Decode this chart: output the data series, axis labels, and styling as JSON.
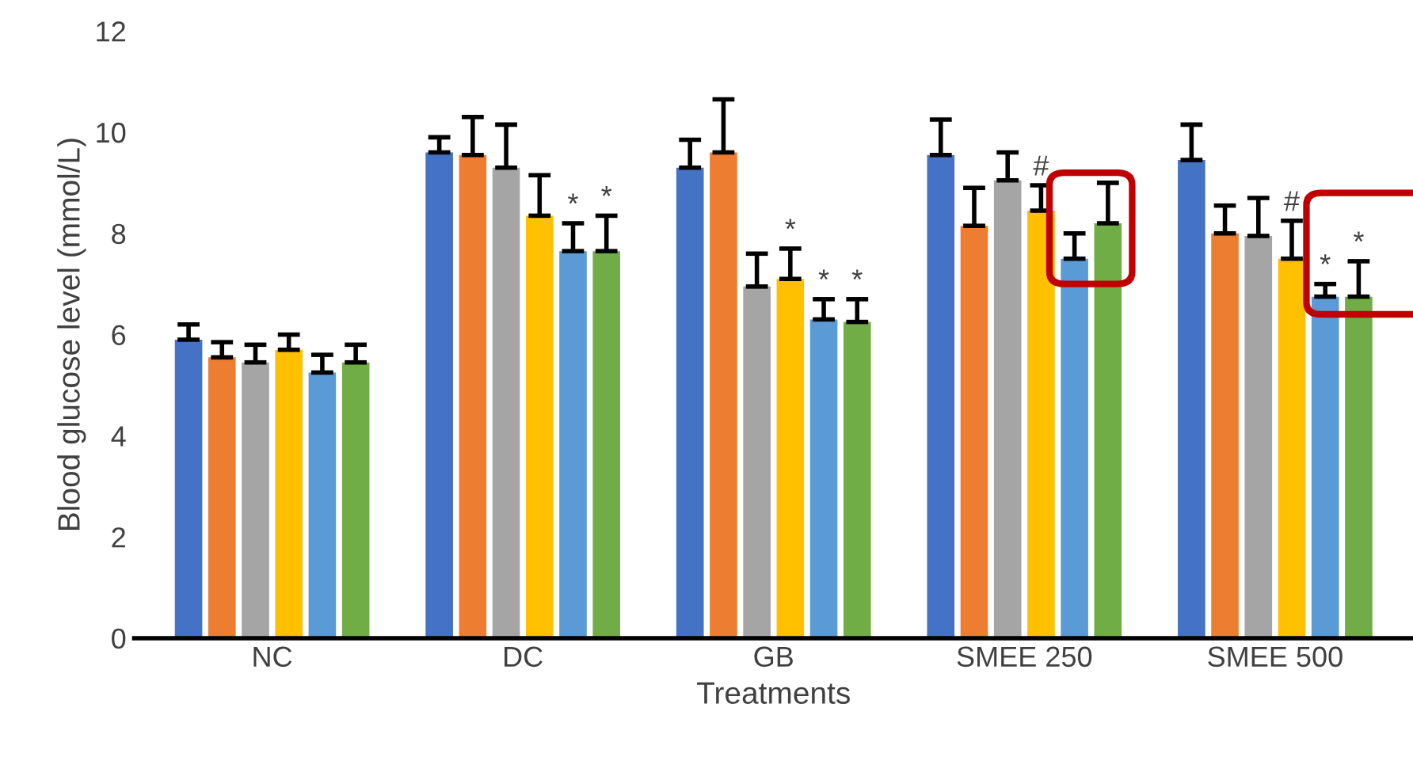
{
  "chart_data": {
    "type": "bar",
    "xlabel": "Treatments",
    "ylabel": "Blood glucose level (mmol/L)",
    "categories": [
      "NC",
      "DC",
      "GB",
      "SMEE 250",
      "SMEE 500"
    ],
    "series": [
      {
        "color": "#4472c4",
        "values": [
          5.9,
          9.6,
          9.3,
          9.55,
          9.45
        ],
        "errors": [
          0.3,
          0.3,
          0.55,
          0.7,
          0.7
        ]
      },
      {
        "color": "#ed7d31",
        "values": [
          5.55,
          9.55,
          9.6,
          8.15,
          8.0
        ],
        "errors": [
          0.3,
          0.75,
          1.05,
          0.75,
          0.55
        ]
      },
      {
        "color": "#a5a5a5",
        "values": [
          5.45,
          9.3,
          6.95,
          9.05,
          7.95
        ],
        "errors": [
          0.35,
          0.85,
          0.65,
          0.55,
          0.75
        ]
      },
      {
        "color": "#ffc000",
        "values": [
          5.7,
          8.35,
          7.1,
          8.45,
          7.5
        ],
        "errors": [
          0.3,
          0.8,
          0.6,
          0.5,
          0.75
        ],
        "value_labels": [
          null,
          null,
          "*",
          "#",
          "#"
        ]
      },
      {
        "color": "#5b9bd5",
        "values": [
          5.25,
          7.65,
          6.3,
          7.5,
          6.75
        ],
        "errors": [
          0.35,
          0.55,
          0.4,
          0.5,
          0.25
        ],
        "value_labels": [
          null,
          "*",
          "*",
          null,
          "*"
        ]
      },
      {
        "color": "#70ad47",
        "values": [
          5.45,
          7.65,
          6.25,
          8.2,
          6.75
        ],
        "errors": [
          0.35,
          0.7,
          0.45,
          0.8,
          0.7
        ],
        "value_labels": [
          null,
          "*",
          "*",
          null,
          "*"
        ]
      }
    ],
    "ylim": [
      0,
      12
    ],
    "yticks": [
      0,
      2,
      4,
      6,
      8,
      10,
      12
    ],
    "grid": false,
    "legend": false
  }
}
